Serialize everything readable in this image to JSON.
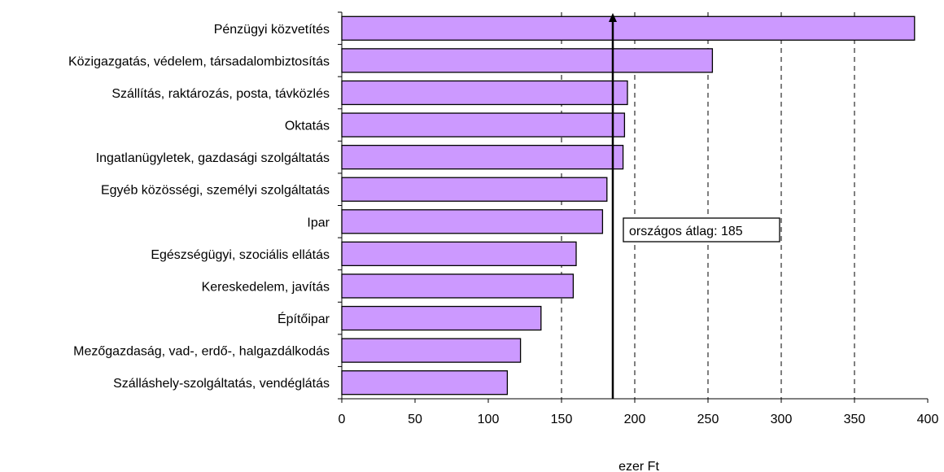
{
  "chart_data": {
    "type": "bar",
    "orientation": "horizontal",
    "categories": [
      "Pénzügyi közvetítés",
      "Közigazgatás, védelem, társadalombiztosítás",
      "Szállítás, raktározás, posta, távközlés",
      "Oktatás",
      "Ingatlanügyletek, gazdasági szolgáltatás",
      "Egyéb közösségi, személyi szolgáltatás",
      "Ipar",
      "Egészségügyi, szociális ellátás",
      "Kereskedelem, javítás",
      "Építőipar",
      "Mezőgazdaság, vad-, erdő-, halgazdálkodás",
      "Szálláshely-szolgáltatás, vendéglátás"
    ],
    "values": [
      391,
      253,
      195,
      193,
      192,
      181,
      178,
      160,
      158,
      136,
      122,
      113
    ],
    "xlabel": "ezer Ft",
    "xlim": [
      0,
      400
    ],
    "xticks": [
      0,
      50,
      100,
      150,
      200,
      250,
      300,
      350,
      400
    ],
    "gridlines": [
      150,
      200,
      250,
      300,
      350
    ],
    "reference_line": {
      "value": 185,
      "label": "országos átlag: 185"
    },
    "bar_color": "#cc99ff"
  }
}
